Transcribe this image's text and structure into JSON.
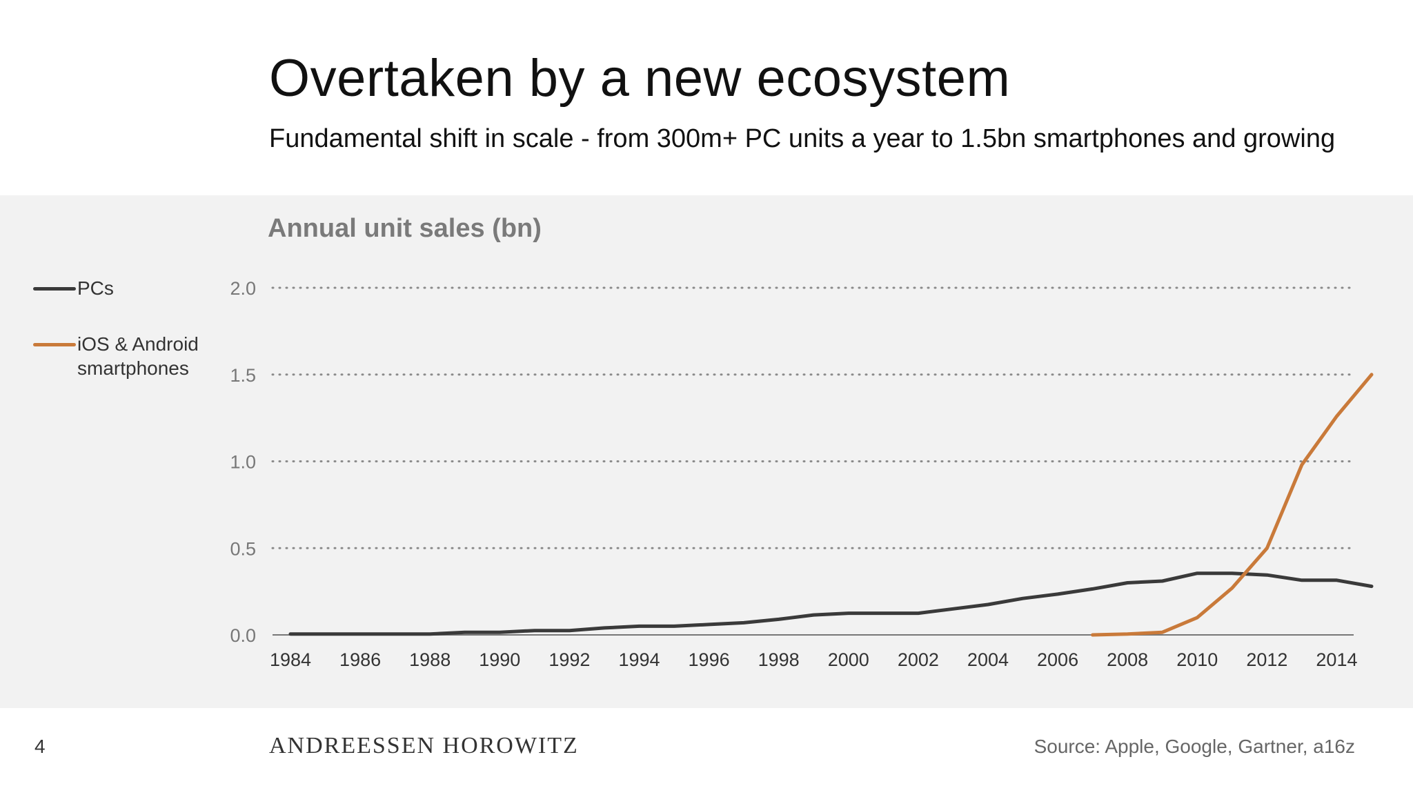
{
  "header": {
    "title": "Overtaken by a new ecosystem",
    "subtitle": "Fundamental shift in scale - from 300m+ PC units a year to 1.5bn smartphones and growing"
  },
  "footer": {
    "page_number": "4",
    "brand": "ANDREESSEN HOROWITZ",
    "source": "Source: Apple, Google, Gartner, a16z"
  },
  "legend": {
    "pcs": "PCs",
    "smartphones_line1": "iOS & Android",
    "smartphones_line2": "smartphones"
  },
  "chart_data": {
    "type": "line",
    "title": "Annual unit sales (bn)",
    "xlabel": "",
    "ylabel": "",
    "xlim": [
      1984,
      2015
    ],
    "ylim": [
      0,
      2.0
    ],
    "y_ticks": [
      "0.0",
      "0.5",
      "1.0",
      "1.5",
      "2.0"
    ],
    "x_ticks": [
      "1984",
      "1986",
      "1988",
      "1990",
      "1992",
      "1994",
      "1996",
      "1998",
      "2000",
      "2002",
      "2004",
      "2006",
      "2008",
      "2010",
      "2012",
      "2014"
    ],
    "grid": "horizontal dotted",
    "legend_position": "left",
    "series": [
      {
        "name": "PCs",
        "color": "#3a3a3a",
        "x": [
          1984,
          1985,
          1986,
          1987,
          1988,
          1989,
          1990,
          1991,
          1992,
          1993,
          1994,
          1995,
          1996,
          1997,
          1998,
          1999,
          2000,
          2001,
          2002,
          2003,
          2004,
          2005,
          2006,
          2007,
          2008,
          2009,
          2010,
          2011,
          2012,
          2013,
          2014,
          2015
        ],
        "y": [
          0.005,
          0.005,
          0.005,
          0.005,
          0.005,
          0.015,
          0.015,
          0.025,
          0.025,
          0.04,
          0.05,
          0.05,
          0.06,
          0.07,
          0.09,
          0.115,
          0.125,
          0.125,
          0.125,
          0.15,
          0.175,
          0.21,
          0.235,
          0.265,
          0.3,
          0.31,
          0.355,
          0.355,
          0.345,
          0.315,
          0.315,
          0.28
        ]
      },
      {
        "name": "iOS & Android smartphones",
        "color": "#c97a3a",
        "x": [
          2007,
          2008,
          2009,
          2010,
          2011,
          2012,
          2013,
          2014,
          2015
        ],
        "y": [
          0.0,
          0.005,
          0.015,
          0.1,
          0.27,
          0.5,
          0.98,
          1.26,
          1.5
        ]
      }
    ]
  }
}
